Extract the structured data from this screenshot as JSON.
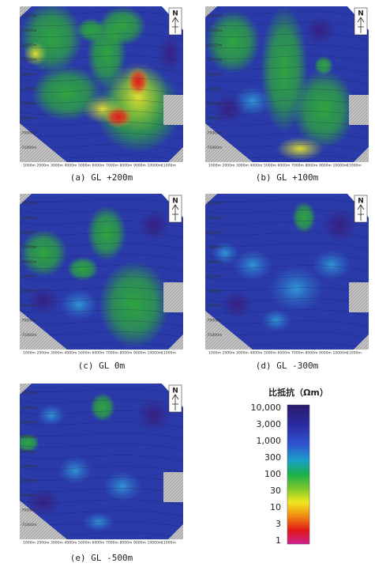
{
  "panels": [
    {
      "caption": "(a)  GL +200m"
    },
    {
      "caption": "(b)  GL +100m"
    },
    {
      "caption": "(c)  GL 0m"
    },
    {
      "caption": "(d)  GL -300m"
    },
    {
      "caption": "(e)  GL -500m"
    }
  ],
  "north": "N",
  "axes": {
    "y_labels": [
      "-62000m",
      "-63000m",
      "-64000m",
      "-65000m",
      "-66000m",
      "-67000m",
      "-68000m",
      "-69000m",
      "-70000m",
      "-71000m"
    ],
    "x_labels": [
      "1000m",
      "2000m",
      "3000m",
      "4000m",
      "5000m",
      "6000m",
      "7000m",
      "8000m",
      "9000m",
      "10000m",
      "11000m"
    ]
  },
  "legend": {
    "title": "比抵抗（Ωm）",
    "labels": [
      "10,000",
      "3,000",
      "1,000",
      "300",
      "100",
      "30",
      "10",
      "3",
      "1"
    ]
  }
}
